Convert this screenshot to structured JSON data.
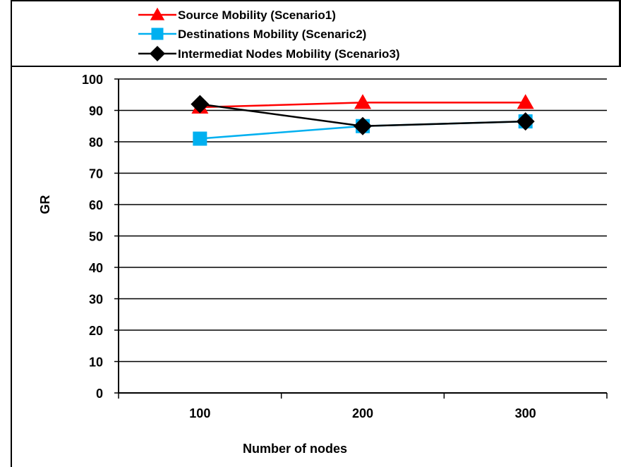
{
  "chart_data": {
    "type": "line",
    "x": [
      100,
      200,
      300
    ],
    "xtick_labels": [
      "100",
      "200",
      "300"
    ],
    "series": [
      {
        "name": "Source Mobility (Scenario1)",
        "values": [
          91,
          92.5,
          92.5
        ],
        "color": "#ff0000",
        "marker": "triangle"
      },
      {
        "name": "Destinations  Mobility (Scenaric2)",
        "values": [
          81,
          85,
          86.5
        ],
        "color": "#00b0f0",
        "marker": "square"
      },
      {
        "name": "Intermediat Nodes Mobility (Scenario3)",
        "values": [
          92,
          85,
          86.5
        ],
        "color": "#000000",
        "marker": "diamond"
      }
    ],
    "xlabel": "Number of nodes",
    "ylabel": "GR",
    "ylim": [
      0,
      100
    ],
    "yticks": [
      0,
      10,
      20,
      30,
      40,
      50,
      60,
      70,
      80,
      90,
      100
    ],
    "grid": "horizontal",
    "legend_position": "top"
  }
}
